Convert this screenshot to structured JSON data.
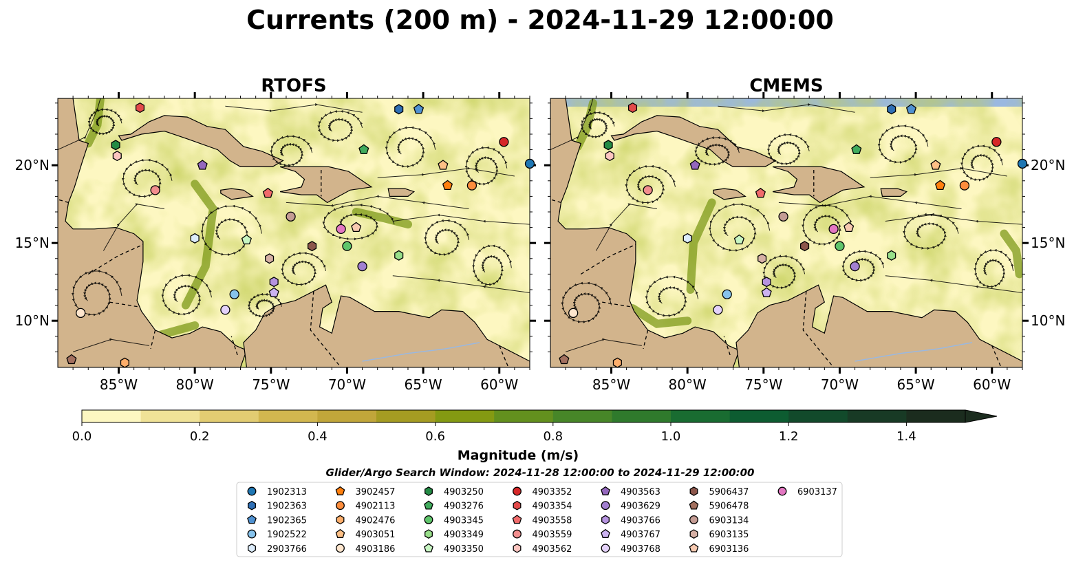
{
  "title": "Currents (200 m) - 2024-11-29 12:00:00",
  "panels": [
    {
      "title": "RTOFS"
    },
    {
      "title": "CMEMS"
    }
  ],
  "lon_ticks": [
    "85°W",
    "80°W",
    "75°W",
    "70°W",
    "65°W",
    "60°W"
  ],
  "lat_ticks": [
    "20°N",
    "15°N",
    "10°N"
  ],
  "map_extent": {
    "lon": [
      -89,
      -58
    ],
    "lat": [
      7,
      24.3
    ]
  },
  "colorbar": {
    "label": "Magnitude (m/s)",
    "ticks": [
      "0.0",
      "0.2",
      "0.4",
      "0.6",
      "0.8",
      "1.0",
      "1.2",
      "1.4"
    ],
    "min": 0.0,
    "max": 1.5,
    "step": 0.1,
    "colors": [
      "#fdf7c1",
      "#f0e297",
      "#e2cc72",
      "#d2b74f",
      "#c1a63a",
      "#a59c22",
      "#849a12",
      "#63901e",
      "#478628",
      "#2f7a2c",
      "#196c31",
      "#0d5c31",
      "#124a2b",
      "#183a25",
      "#1b2c1e"
    ]
  },
  "search_window": "Glider/Argo Search Window: 2024-11-28 12:00:00 to 2024-11-29 12:00:00",
  "colors": {
    "ocean": "#9ab8e0",
    "land": "#d2b48c",
    "field_low": "#fdf7c1"
  },
  "floats": [
    {
      "id": "1902313",
      "shape": "circle",
      "color": "#1f77b4",
      "lon": -58.0,
      "lat": 20.1
    },
    {
      "id": "1902363",
      "shape": "hexagon",
      "color": "#2f6fb5",
      "lon": -66.6,
      "lat": 23.6
    },
    {
      "id": "1902365",
      "shape": "pentagon",
      "color": "#4f91d1",
      "lon": -65.3,
      "lat": 23.6
    },
    {
      "id": "1902522",
      "shape": "circle",
      "color": "#87c3ec",
      "lon": -77.4,
      "lat": 11.7
    },
    {
      "id": "2903766",
      "shape": "hexagon",
      "color": "#dcecfb",
      "lon": -80.0,
      "lat": 15.3
    },
    {
      "id": "3902457",
      "shape": "pentagon",
      "color": "#ff7f0e",
      "lon": -63.4,
      "lat": 18.7
    },
    {
      "id": "4902113",
      "shape": "circle",
      "color": "#fd8d3c",
      "lon": -61.8,
      "lat": 18.7
    },
    {
      "id": "4902476",
      "shape": "hexagon",
      "color": "#fdae6b",
      "lon": -84.6,
      "lat": 7.3
    },
    {
      "id": "4903051",
      "shape": "pentagon",
      "color": "#fdc086",
      "lon": -63.7,
      "lat": 20.0
    },
    {
      "id": "4903186",
      "shape": "circle",
      "color": "#fee6ce",
      "lon": -87.5,
      "lat": 10.5
    },
    {
      "id": "4903250",
      "shape": "hexagon",
      "color": "#238b45",
      "lon": -85.2,
      "lat": 21.3
    },
    {
      "id": "4903276",
      "shape": "pentagon",
      "color": "#41ab5d",
      "lon": -68.9,
      "lat": 21.0
    },
    {
      "id": "4903345",
      "shape": "circle",
      "color": "#5fc56b",
      "lon": -70.0,
      "lat": 14.8
    },
    {
      "id": "4903349",
      "shape": "hexagon",
      "color": "#98df8a",
      "lon": -66.6,
      "lat": 14.2
    },
    {
      "id": "4903350",
      "shape": "pentagon",
      "color": "#c7f5c2",
      "lon": -76.6,
      "lat": 15.2
    },
    {
      "id": "4903352",
      "shape": "circle",
      "color": "#d62728",
      "lon": -59.7,
      "lat": 21.5
    },
    {
      "id": "4903354",
      "shape": "hexagon",
      "color": "#e34a4a",
      "lon": -83.6,
      "lat": 23.7
    },
    {
      "id": "4903558",
      "shape": "pentagon",
      "color": "#f06b6b",
      "lon": -75.2,
      "lat": 18.2
    },
    {
      "id": "4903559",
      "shape": "circle",
      "color": "#f28e8e",
      "lon": -82.6,
      "lat": 18.4
    },
    {
      "id": "4903562",
      "shape": "hexagon",
      "color": "#fcc5c0",
      "lon": -85.1,
      "lat": 20.6
    },
    {
      "id": "4903563",
      "shape": "pentagon",
      "color": "#9467bd",
      "lon": -79.5,
      "lat": 20.0
    },
    {
      "id": "4903629",
      "shape": "circle",
      "color": "#a27fd0",
      "lon": -69.0,
      "lat": 13.5
    },
    {
      "id": "4903766",
      "shape": "hexagon",
      "color": "#b693e0",
      "lon": -74.8,
      "lat": 12.5
    },
    {
      "id": "4903767",
      "shape": "pentagon",
      "color": "#cbb2f0",
      "lon": -74.8,
      "lat": 11.8
    },
    {
      "id": "4903768",
      "shape": "circle",
      "color": "#e4d2fb",
      "lon": -78.0,
      "lat": 10.7
    },
    {
      "id": "5906437",
      "shape": "hexagon",
      "color": "#8c564b",
      "lon": -72.3,
      "lat": 14.8
    },
    {
      "id": "5906478",
      "shape": "pentagon",
      "color": "#a3705f",
      "lon": -88.1,
      "lat": 7.5
    },
    {
      "id": "6903134",
      "shape": "circle",
      "color": "#c49c94",
      "lon": -73.7,
      "lat": 16.7
    },
    {
      "id": "6903135",
      "shape": "hexagon",
      "color": "#d6b0a5",
      "lon": -75.1,
      "lat": 14.0
    },
    {
      "id": "6903136",
      "shape": "pentagon",
      "color": "#f7c9b0",
      "lon": -69.4,
      "lat": 16.0
    },
    {
      "id": "6903137",
      "shape": "circle",
      "color": "#e377c2",
      "lon": -70.4,
      "lat": 15.9
    }
  ]
}
